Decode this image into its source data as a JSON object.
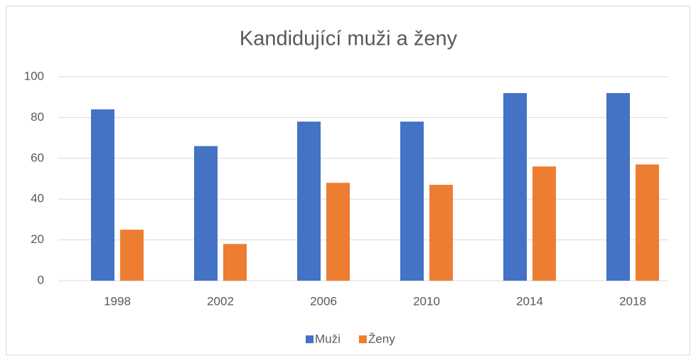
{
  "chart_data": {
    "type": "bar",
    "title": "Kandidující muži a ženy",
    "categories": [
      "1998",
      "2002",
      "2006",
      "2010",
      "2014",
      "2018"
    ],
    "series": [
      {
        "name": "Muži",
        "color": "#4472c4",
        "values": [
          84,
          66,
          78,
          78,
          92,
          92
        ]
      },
      {
        "name": "Ženy",
        "color": "#ed7d31",
        "values": [
          25,
          18,
          48,
          47,
          56,
          57
        ]
      }
    ],
    "ylim": [
      0,
      100
    ],
    "yticks": [
      0,
      20,
      40,
      60,
      80,
      100
    ],
    "grid": true,
    "legend": "bottom"
  }
}
